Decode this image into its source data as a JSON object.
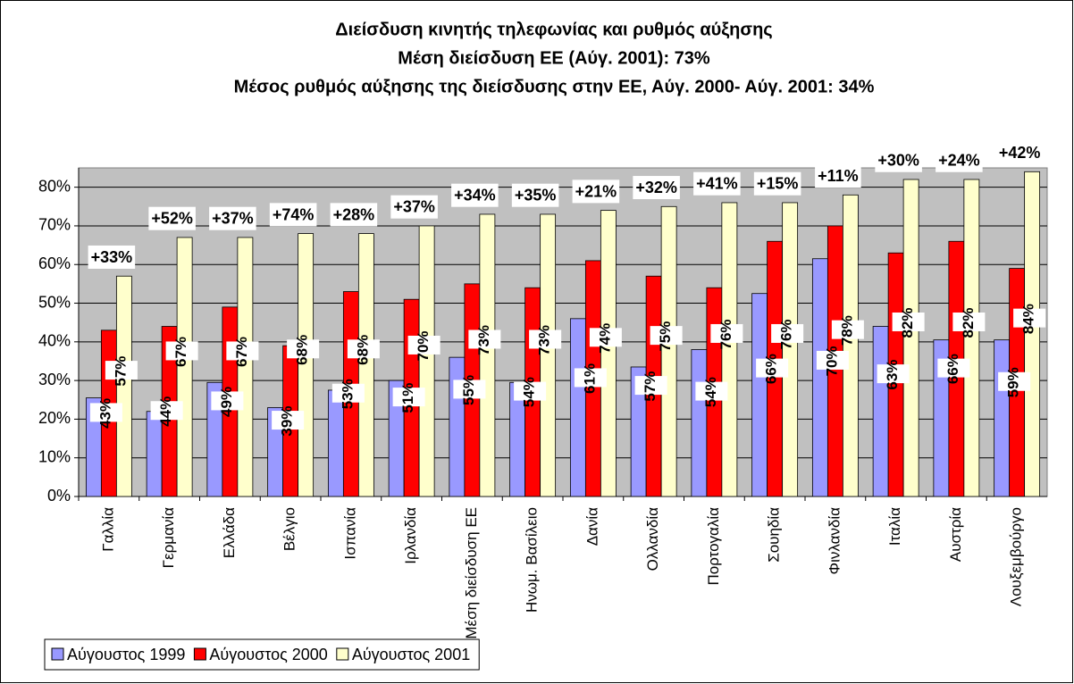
{
  "chart_data": {
    "type": "bar",
    "title": "Διείσδυση κινητής τηλεφωνίας και ρυθμός αύξησης",
    "subtitle": [
      "Μέση διείσδυση ΕΕ (Αύγ. 2001): 73%",
      "Μέσος ρυθμός αύξησης της διείσδυσης στην ΕΕ, Αύγ. 2000- Αύγ. 2001: 34%"
    ],
    "categories": [
      "Γαλλία",
      "Γερμανία",
      "Ελλάδα",
      "Βέλγιο",
      "Ισπανία",
      "Ιρλανδία",
      "Μέση διείσδυση ΕΕ",
      "Ηνωμ. Βασίλειο",
      "Δανία",
      "Ολλανδία",
      "Πορτογαλία",
      "Σουηδία",
      "Φινλανδία",
      "Ιταλία",
      "Αυστρία",
      "Λουξεμβούργο"
    ],
    "series": [
      {
        "name": "Αύγουστος 1999",
        "color": "#9999ff",
        "values": [
          25.5,
          22,
          29.5,
          23,
          27.5,
          30,
          36,
          29.5,
          46,
          33.5,
          38,
          52.5,
          61.5,
          44,
          40.5,
          40.5
        ]
      },
      {
        "name": "Αύγουστος 2000",
        "color": "#ff0000",
        "values": [
          43,
          44,
          49,
          39,
          53,
          51,
          55,
          54,
          61,
          57,
          54,
          66,
          70,
          63,
          66,
          59
        ],
        "value_labels": [
          "43%",
          "44%",
          "49%",
          "39%",
          "53%",
          "51%",
          "55%",
          "54%",
          "61%",
          "57%",
          "54%",
          "66%",
          "70%",
          "63%",
          "66%",
          "59%"
        ]
      },
      {
        "name": "Αύγουστος 2001",
        "color": "#ffffcc",
        "values": [
          57,
          67,
          67,
          68,
          68,
          70,
          73,
          73,
          74,
          75,
          76,
          76,
          78,
          82,
          82,
          84
        ],
        "value_labels": [
          "57%",
          "67%",
          "67%",
          "68%",
          "68%",
          "70%",
          "73%",
          "73%",
          "74%",
          "75%",
          "76%",
          "76%",
          "78%",
          "82%",
          "82%",
          "84%"
        ]
      }
    ],
    "annotations": [
      "+33%",
      "+52%",
      "+37%",
      "+74%",
      "+28%",
      "+37%",
      "+34%",
      "+35%",
      "+21%",
      "+32%",
      "+41%",
      "+15%",
      "+11%",
      "+30%",
      "+24%",
      "+42%"
    ],
    "ylim": [
      0,
      85
    ],
    "yticks": [
      {
        "value": 0,
        "label": "0%"
      },
      {
        "value": 10,
        "label": "10%"
      },
      {
        "value": 20,
        "label": "20%"
      },
      {
        "value": 30,
        "label": "30%"
      },
      {
        "value": 40,
        "label": "40%"
      },
      {
        "value": 50,
        "label": "50%"
      },
      {
        "value": 60,
        "label": "60%"
      },
      {
        "value": 70,
        "label": "70%"
      },
      {
        "value": 80,
        "label": "80%"
      }
    ],
    "grid": true,
    "legend": "bottom-left"
  }
}
